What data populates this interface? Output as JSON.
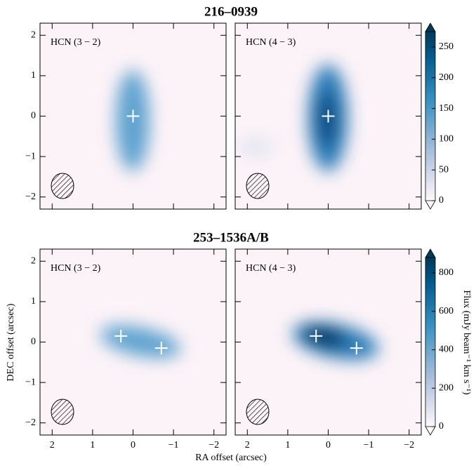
{
  "chart_data": {
    "type": "image",
    "xlabel": "RA offset (arcsec)",
    "ylabel": "DEC offset (arcsec)",
    "xlim": [
      2.3,
      -2.3
    ],
    "ylim": [
      -2.3,
      2.3
    ],
    "xticks": [
      2,
      1,
      0,
      {
        "value": -1,
        "label": "−1"
      },
      {
        "value": -2,
        "label": "−2"
      }
    ],
    "yticks": [
      {
        "value": -2,
        "label": "−2"
      },
      {
        "value": -1,
        "label": "−1"
      },
      0,
      1,
      2
    ],
    "rows": [
      {
        "title": "216–0939",
        "colorbar": {
          "lim": [
            0,
            275
          ],
          "ticks": [
            0,
            50,
            100,
            150,
            200,
            250
          ]
        },
        "panels": [
          {
            "label": "HCN (3 − 2)",
            "markers": {
              "x": [
                0
              ],
              "y": [
                0
              ]
            }
          },
          {
            "label": "HCN (4 − 3)",
            "markers": {
              "x": [
                0
              ],
              "y": [
                0
              ]
            }
          }
        ]
      },
      {
        "title": "253–1536A/B",
        "colorbar": {
          "lim": [
            0,
            880
          ],
          "ticks": [
            0,
            200,
            400,
            600,
            800
          ],
          "label": "Flux (mJy beam⁻¹ km s⁻¹)"
        },
        "panels": [
          {
            "label": "HCN (3 − 2)",
            "markers": {
              "x": [
                0.3,
                -0.7
              ],
              "y": [
                0.15,
                -0.15
              ]
            }
          },
          {
            "label": "HCN (4 − 3)",
            "markers": {
              "x": [
                0.3,
                -0.7
              ],
              "y": [
                0.15,
                -0.15
              ]
            }
          }
        ]
      }
    ]
  }
}
